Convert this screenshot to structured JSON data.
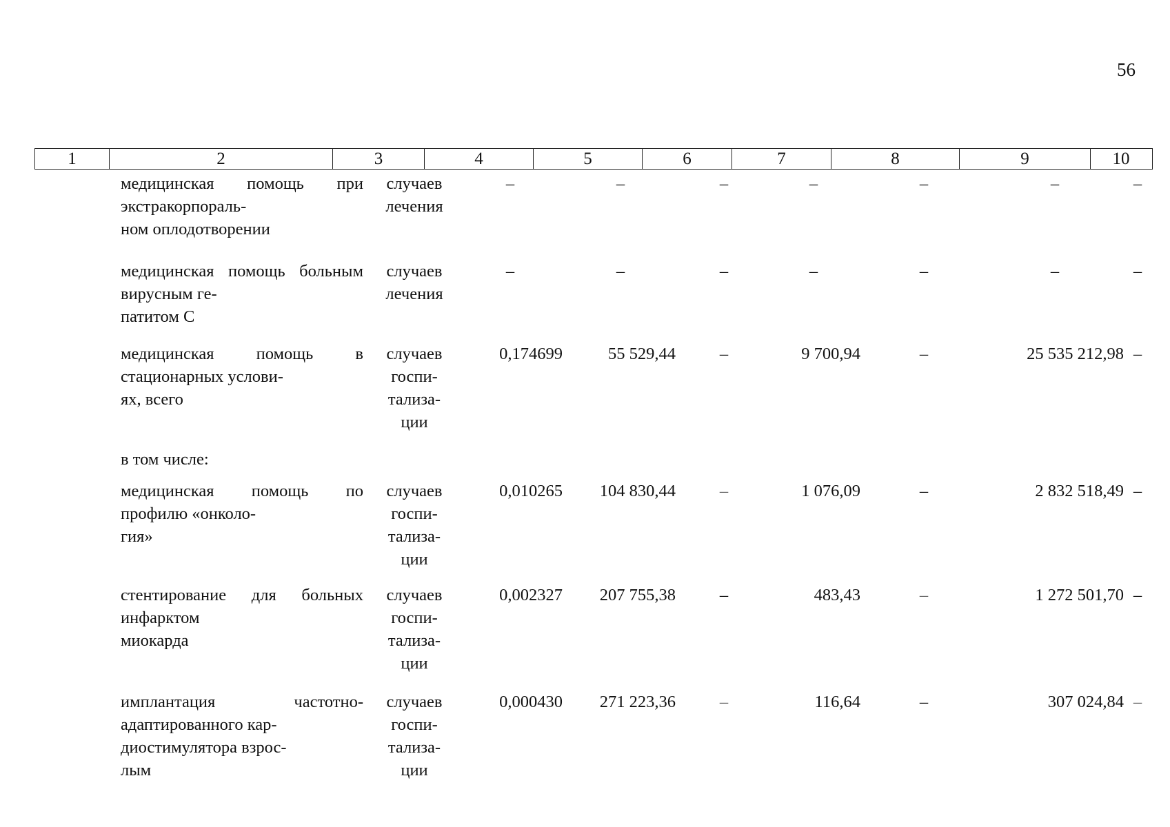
{
  "page_number": "56",
  "header_columns": [
    "1",
    "2",
    "3",
    "4",
    "5",
    "6",
    "7",
    "8",
    "9",
    "10"
  ],
  "rows": [
    {
      "name": "медицинская помощь при экстракорпоральном оплодотворении",
      "name_lines": [
        "медицинская помощь при экстракорпораль-",
        "ном оплодотворении"
      ],
      "unit_lines": [
        "случаев",
        "лечения"
      ],
      "c4": "–",
      "c5": "–",
      "c6": "–",
      "c7": "–",
      "c8": "–",
      "c9": "–",
      "c10": "–"
    },
    {
      "name_lines": [
        "медицинская помощь больным вирусным ге-",
        "патитом С"
      ],
      "unit_lines": [
        "случаев",
        "лечения"
      ],
      "c4": "–",
      "c5": "–",
      "c6": "–",
      "c7": "–",
      "c8": "–",
      "c9": "–",
      "c10": "–"
    },
    {
      "name_lines": [
        "медицинская помощь в стационарных услови-",
        "ях, всего"
      ],
      "unit_lines": [
        "случаев",
        "госпи-",
        "тализа-",
        "ции"
      ],
      "c4": "0,174699",
      "c5": "55 529,44",
      "c6": "–",
      "c7": "9 700,94",
      "c8": "–",
      "c9": "25 535 212,98",
      "c10": "–"
    },
    {
      "name_lines": [
        "в том числе:"
      ]
    },
    {
      "name_lines": [
        "медицинская помощь по профилю «онколо-",
        "гия»"
      ],
      "unit_lines": [
        "случаев",
        "госпи-",
        "тализа-",
        "ции"
      ],
      "c4": "0,010265",
      "c5": "104 830,44",
      "c6": "–",
      "c7": "1 076,09",
      "c8": "–",
      "c9": "2 832 518,49",
      "c10": "–"
    },
    {
      "name_lines": [
        "стентирование для больных инфарктом",
        "миокарда"
      ],
      "unit_lines": [
        "случаев",
        "госпи-",
        "тализа-",
        "ции"
      ],
      "c4": "0,002327",
      "c5": "207 755,38",
      "c6": "–",
      "c7": "483,43",
      "c8": "–",
      "c9": "1 272 501,70",
      "c10": "–"
    },
    {
      "name_lines": [
        "имплантация частотно-адаптированного кар-",
        "диостимулятора взрос-",
        "лым"
      ],
      "unit_lines": [
        "случаев",
        "госпи-",
        "тализа-",
        "ции"
      ],
      "c4": "0,000430",
      "c5": "271 223,36",
      "c6": "–",
      "c7": "116,64",
      "c8": "–",
      "c9": "307 024,84",
      "c10": "–"
    }
  ]
}
